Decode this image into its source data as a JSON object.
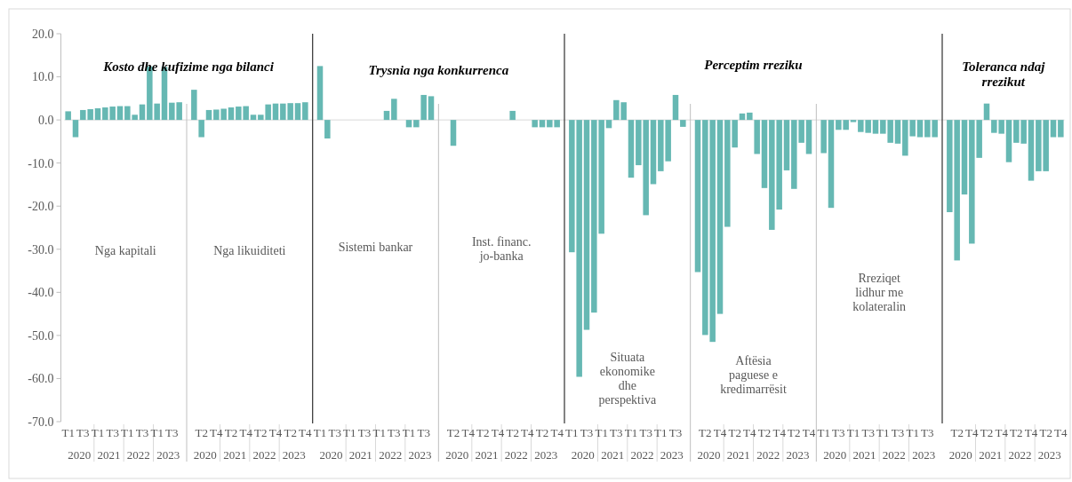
{
  "chart_data": {
    "type": "bar",
    "categories": [
      "T1",
      null,
      "T3",
      null,
      "T1",
      null,
      "T3",
      null,
      "T1",
      null,
      "T3",
      null,
      "T1",
      null,
      "T3",
      null,
      null,
      null,
      "T2",
      null,
      "T4",
      null,
      "T2",
      null,
      "T4",
      null,
      "T2",
      null,
      "T4",
      null,
      "T2",
      null,
      "T4",
      null,
      "T1",
      null,
      "T3",
      null,
      "T1",
      null,
      "T3",
      null,
      "T1",
      null,
      "T3",
      null,
      "T1",
      null,
      "T3",
      null,
      null,
      null,
      "T2",
      null,
      "T4",
      null,
      "T2",
      null,
      "T4",
      null,
      "T2",
      null,
      "T4",
      null,
      "T2",
      null,
      "T4",
      null,
      "T1",
      null,
      "T3",
      null,
      "T1",
      null,
      "T3",
      null,
      "T1",
      null,
      "T3",
      null,
      "T1",
      null,
      "T3",
      null,
      null,
      null,
      "T2",
      null,
      "T4",
      null,
      "T2",
      null,
      "T4",
      null,
      "T2",
      null,
      "T4",
      null,
      "T2",
      null,
      "T4",
      null,
      "T1",
      null,
      "T3",
      null,
      "T1",
      null,
      "T3",
      null,
      "T1",
      null,
      "T3",
      null,
      "T1",
      null,
      "T3",
      null,
      null,
      null,
      "T2",
      null,
      "T4",
      null,
      "T2",
      null,
      "T4",
      null,
      "T2",
      null,
      "T4",
      null,
      "T2",
      null,
      "T4"
    ],
    "values": [
      2.0,
      -4.0,
      2.3,
      2.5,
      2.7,
      2.9,
      3.1,
      3.2,
      3.2,
      1.2,
      3.6,
      12.4,
      3.8,
      12.3,
      4.0,
      4.1,
      null,
      7.0,
      -4.0,
      2.3,
      2.4,
      2.6,
      2.9,
      3.1,
      3.2,
      1.2,
      1.2,
      3.6,
      3.8,
      3.8,
      3.9,
      3.9,
      4.1,
      null,
      12.5,
      -4.3,
      0,
      0,
      0,
      0,
      0,
      0,
      0,
      2.1,
      4.9,
      0,
      -1.7,
      -1.7,
      5.8,
      5.5,
      null,
      0,
      -6.0,
      0,
      0,
      0,
      0,
      0,
      0,
      0,
      2.1,
      0,
      0,
      -1.7,
      -1.7,
      -1.7,
      -1.7,
      null,
      -30.7,
      -59.6,
      -48.7,
      -44.7,
      -26.4,
      -1.9,
      4.6,
      4.1,
      -13.4,
      -10.5,
      -22.1,
      -14.9,
      -11.9,
      -9.6,
      5.8,
      -1.6,
      null,
      -35.3,
      -49.9,
      -51.5,
      -45.0,
      -24.8,
      -6.4,
      1.5,
      1.7,
      -7.9,
      -15.8,
      -25.5,
      -20.8,
      -11.7,
      -16.0,
      -5.3,
      -7.9,
      null,
      -7.7,
      -20.4,
      -2.3,
      -2.3,
      -0.5,
      -2.8,
      -3.0,
      -3.2,
      -3.2,
      -5.3,
      -5.5,
      -8.3,
      -3.8,
      -4.0,
      -4.0,
      -4.0,
      null,
      -21.4,
      -32.6,
      -17.3,
      -28.7,
      -8.8,
      3.8,
      -3.0,
      -3.2,
      -9.8,
      -5.3,
      -5.5,
      -14.1,
      -11.9,
      -11.9,
      -4.0,
      -4.0
    ],
    "color": "#66b8b3",
    "ylim": [
      -70,
      20
    ],
    "yticks": [
      {
        "value": -70,
        "label": "-70.0"
      },
      {
        "value": -60,
        "label": "-60.0"
      },
      {
        "value": -50,
        "label": "-50.0"
      },
      {
        "value": -40,
        "label": "-40.0"
      },
      {
        "value": -30,
        "label": "-30.0"
      },
      {
        "value": -20,
        "label": "-20.0"
      },
      {
        "value": -10,
        "label": "-10.0"
      },
      {
        "value": 0,
        "label": "0.0"
      },
      {
        "value": 10,
        "label": "10.0"
      },
      {
        "value": 20,
        "label": "20.0"
      }
    ],
    "annotations": [
      "Kosto dhe kufizime nga bilanci",
      "Trysnia nga konkurrenca",
      "Perceptim rreziku",
      "Toleranca ndaj\nrrezikut",
      "Nga kapitali",
      "Nga likuiditeti",
      "Sistemi bankar",
      "Inst. financ.\njo-banka",
      "Situata\nekonomike\ndhe\nperspektiva",
      "Aftësia\npaguese e\nkredimarrësit",
      "Rreziqet\nlidhur me\nkolateralin",
      "2020",
      "2021",
      "2022",
      "2023",
      "2020",
      "2021",
      "2022",
      "2023",
      "2020",
      "2021",
      "2022",
      "2023",
      "2020",
      "2021",
      "2022",
      "2023",
      "2020",
      "2021",
      "2022",
      "2023",
      "2020",
      "2021",
      "2022",
      "2023",
      "2020",
      "2021",
      "2022",
      "2023",
      "2020",
      "2021",
      "2022",
      "2023"
    ]
  }
}
